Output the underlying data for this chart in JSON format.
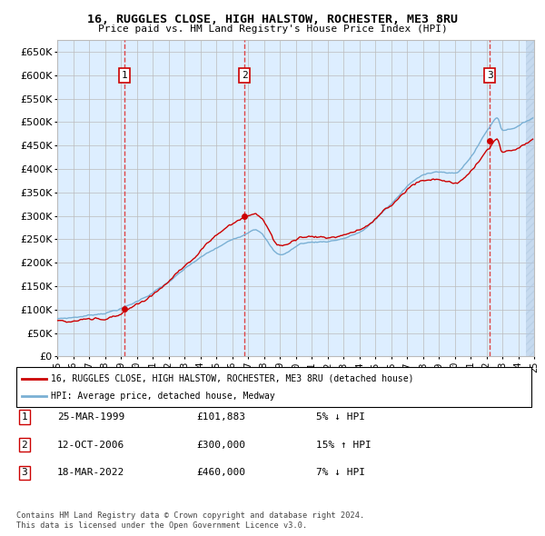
{
  "title": "16, RUGGLES CLOSE, HIGH HALSTOW, ROCHESTER, ME3 8RU",
  "subtitle": "Price paid vs. HM Land Registry's House Price Index (HPI)",
  "legend_line1": "16, RUGGLES CLOSE, HIGH HALSTOW, ROCHESTER, ME3 8RU (detached house)",
  "legend_line2": "HPI: Average price, detached house, Medway",
  "table_entries": [
    {
      "num": "1",
      "date": "25-MAR-1999",
      "price": "£101,883",
      "hpi": "5% ↓ HPI"
    },
    {
      "num": "2",
      "date": "12-OCT-2006",
      "price": "£300,000",
      "hpi": "15% ↑ HPI"
    },
    {
      "num": "3",
      "date": "18-MAR-2022",
      "price": "£460,000",
      "hpi": "7% ↓ HPI"
    }
  ],
  "footnote1": "Contains HM Land Registry data © Crown copyright and database right 2024.",
  "footnote2": "This data is licensed under the Open Government Licence v3.0.",
  "sale1_year": 1999.23,
  "sale1_price": 101883,
  "sale2_year": 2006.79,
  "sale2_price": 300000,
  "sale3_year": 2022.21,
  "sale3_price": 460000,
  "red_line_color": "#cc0000",
  "blue_line_color": "#7ab0d4",
  "bg_color": "#ddeeff",
  "grid_color": "#bbbbbb",
  "dashed_vline_color": "#dd4444",
  "ylim_min": 0,
  "ylim_max": 675000,
  "ytick_step": 50000,
  "hpi_key_t": [
    1995.0,
    1997.0,
    1999.2,
    2001.5,
    2004.0,
    2006.8,
    2007.5,
    2009.0,
    2010.5,
    2012.0,
    2014.0,
    2016.0,
    2017.5,
    2019.0,
    2020.0,
    2021.0,
    2022.2,
    2022.7,
    2023.0,
    2024.0,
    2025.0
  ],
  "hpi_key_v": [
    80000,
    88000,
    107000,
    150000,
    210000,
    261000,
    275000,
    220000,
    245000,
    250000,
    270000,
    330000,
    380000,
    400000,
    395000,
    430000,
    495000,
    515000,
    490000,
    500000,
    520000
  ]
}
